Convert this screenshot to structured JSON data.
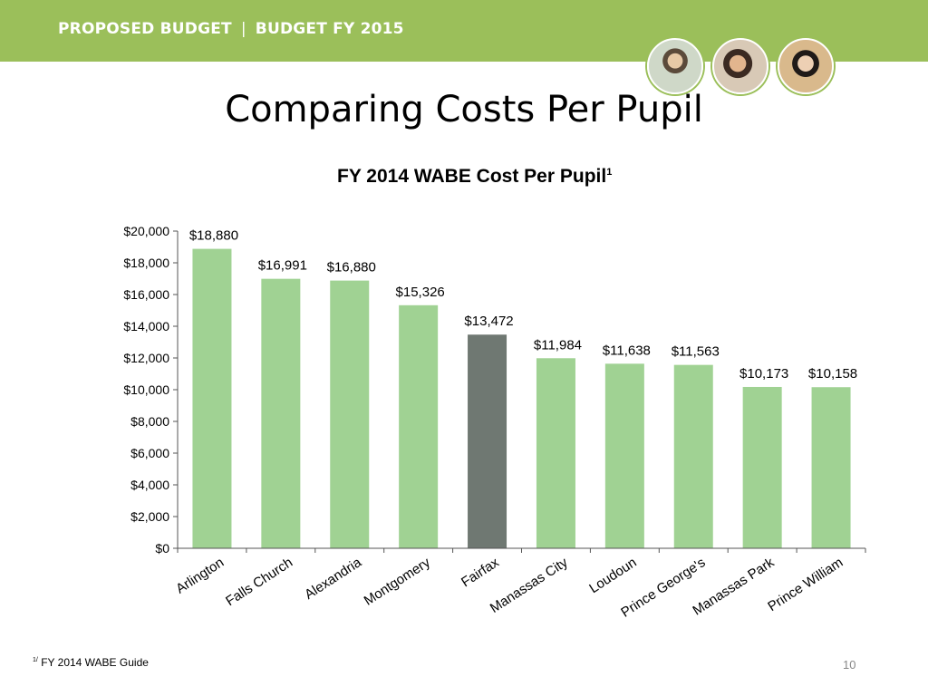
{
  "header": {
    "left_label": "PROPOSED BUDGET",
    "separator": "|",
    "right_label": "BUDGET FY 2015",
    "photos": [
      "student-photo-1",
      "student-photo-2",
      "student-photo-3"
    ]
  },
  "slide": {
    "title": "Comparing Costs Per Pupil",
    "footnote_marker": "1/",
    "footnote_text": "FY 2014 WABE Guide",
    "page_number": "10"
  },
  "colors": {
    "banner": "#9bbf5a",
    "bar": "#a0d293",
    "highlight_bar": "#6f7872"
  },
  "chart_data": {
    "type": "bar",
    "title": "FY 2014 WABE Cost Per Pupil",
    "title_superscript": "1",
    "categories": [
      "Arlington",
      "Falls Church",
      "Alexandria",
      "Montgomery",
      "Fairfax",
      "Manassas City",
      "Loudoun",
      "Prince George's",
      "Manassas Park",
      "Prince William"
    ],
    "values": [
      18880,
      16991,
      16880,
      15326,
      13472,
      11984,
      11638,
      11563,
      10173,
      10158
    ],
    "data_labels": [
      "$18,880",
      "$16,991",
      "$16,880",
      "$15,326",
      "$13,472",
      "$11,984",
      "$11,638",
      "$11,563",
      "$10,173",
      "$10,158"
    ],
    "highlight_category": "Fairfax",
    "y_ticks": [
      0,
      2000,
      4000,
      6000,
      8000,
      10000,
      12000,
      14000,
      16000,
      18000,
      20000
    ],
    "y_tick_labels": [
      "$0",
      "$2,000",
      "$4,000",
      "$6,000",
      "$8,000",
      "$10,000",
      "$12,000",
      "$14,000",
      "$16,000",
      "$18,000",
      "$20,000"
    ],
    "ylim": [
      0,
      20000
    ],
    "grid": false,
    "legend": "none",
    "xlabel": "",
    "ylabel": ""
  }
}
